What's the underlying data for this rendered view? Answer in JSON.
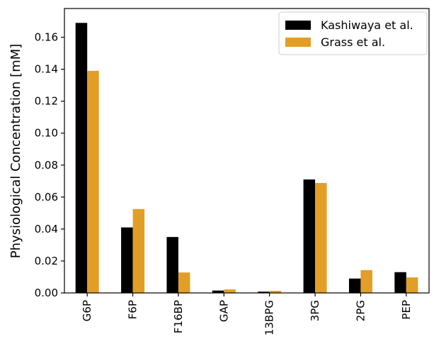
{
  "chart_data": {
    "type": "bar",
    "title": "",
    "xlabel": "",
    "ylabel": "Physiological Concentration [mM]",
    "ylim": [
      0,
      0.178
    ],
    "yticks": [
      "0.00",
      "0.02",
      "0.04",
      "0.06",
      "0.08",
      "0.10",
      "0.12",
      "0.14",
      "0.16"
    ],
    "categories": [
      "G6P",
      "F6P",
      "F16BP",
      "GAP",
      "13BPG",
      "3PG",
      "2PG",
      "PEP"
    ],
    "series": [
      {
        "name": "Kashiwaya et al.",
        "color": "#000000",
        "values": [
          0.169,
          0.041,
          0.035,
          0.0015,
          0.0008,
          0.071,
          0.009,
          0.013
        ]
      },
      {
        "name": "Grass et al.",
        "color": "#e29e26",
        "values": [
          0.139,
          0.0525,
          0.0128,
          0.0022,
          0.0013,
          0.0688,
          0.0143,
          0.0097
        ]
      }
    ],
    "legend_position": "top-right",
    "grid": false
  }
}
